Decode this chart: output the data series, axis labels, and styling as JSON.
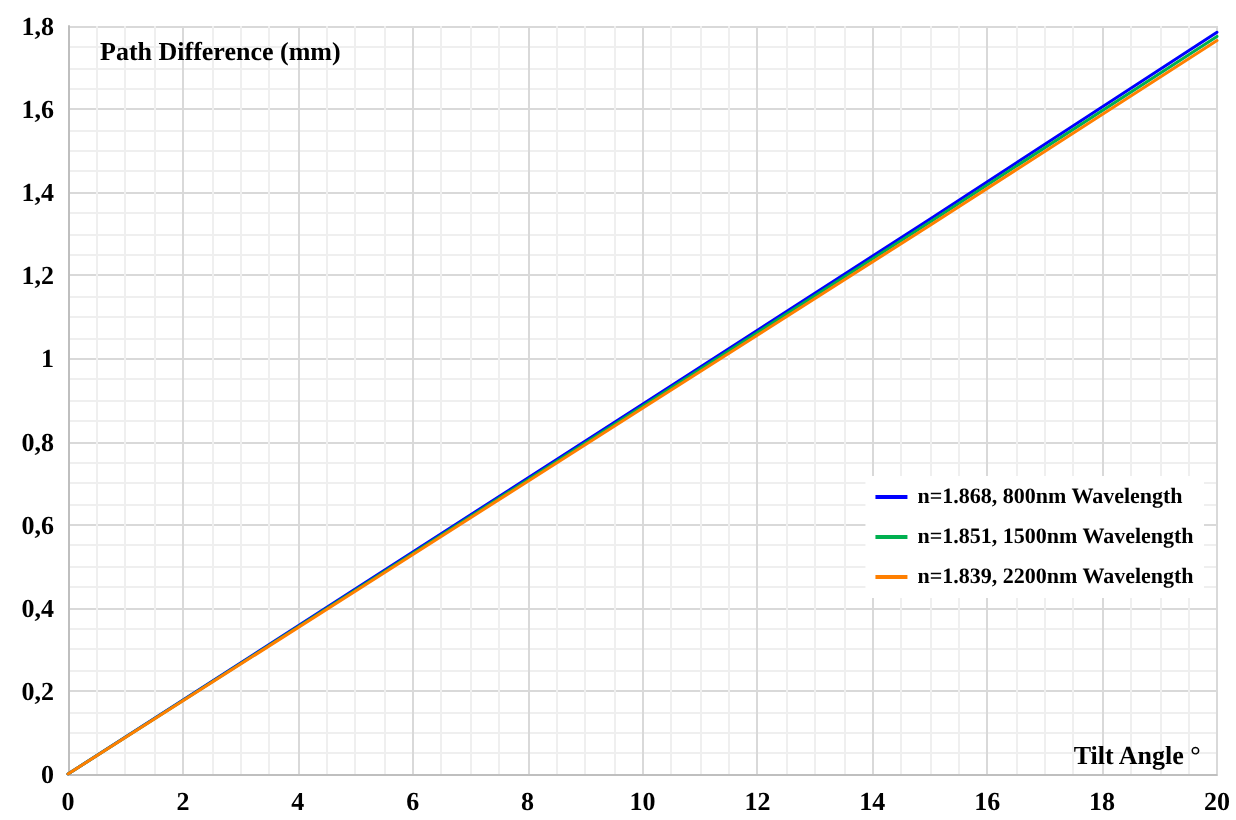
{
  "chart_data": {
    "type": "line",
    "xlabel": "Tilt Angle °",
    "ylabel": "Path Difference (mm)",
    "x": [
      0,
      5,
      10,
      15,
      20
    ],
    "series": [
      {
        "name": "n=1.868, 800nm Wavelength",
        "color": "#0000ff",
        "values": [
          0,
          0.445,
          0.89,
          1.335,
          1.785
        ]
      },
      {
        "name": "n=1.851, 1500nm Wavelength",
        "color": "#00b050",
        "values": [
          0,
          0.442,
          0.885,
          1.328,
          1.775
        ]
      },
      {
        "name": "n=1.839, 2200nm Wavelength",
        "color": "#ff7f00",
        "values": [
          0,
          0.44,
          0.88,
          1.32,
          1.765
        ]
      }
    ],
    "xlim": [
      0,
      20
    ],
    "xticks": [
      0,
      2,
      4,
      6,
      8,
      10,
      12,
      14,
      16,
      18,
      20
    ],
    "ylim": [
      0,
      1.8
    ],
    "yticks": [
      0,
      {
        "value": 0.2,
        "label": "0,2"
      },
      {
        "value": 0.4,
        "label": "0,4"
      },
      {
        "value": 0.6,
        "label": "0,6"
      },
      {
        "value": 0.8,
        "label": "0,8"
      },
      1,
      {
        "value": 1.2,
        "label": "1,2"
      },
      {
        "value": 1.4,
        "label": "1,4"
      },
      {
        "value": 1.6,
        "label": "1,6"
      },
      {
        "value": 1.8,
        "label": "1,8"
      }
    ],
    "grid": true,
    "legend": "right",
    "marker": "none",
    "line_style": "solid"
  }
}
